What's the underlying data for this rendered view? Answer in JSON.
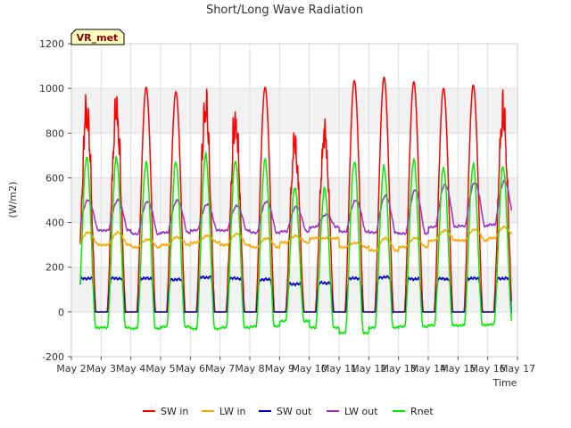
{
  "chart_data": {
    "type": "line",
    "title": "Short/Long Wave Radiation",
    "xlabel": "Time",
    "ylabel": "(W/m2)",
    "badge": "VR_met",
    "ylim": [
      -200,
      1200
    ],
    "yticks": [
      -200,
      0,
      200,
      400,
      600,
      800,
      1000,
      1200
    ],
    "xlim": [
      2,
      17
    ],
    "xticks": [
      {
        "v": 2,
        "label": "May 2"
      },
      {
        "v": 3,
        "label": "May 3"
      },
      {
        "v": 4,
        "label": "May 4"
      },
      {
        "v": 5,
        "label": "May 5"
      },
      {
        "v": 6,
        "label": "May 6"
      },
      {
        "v": 7,
        "label": "May 7"
      },
      {
        "v": 8,
        "label": "May 8"
      },
      {
        "v": 9,
        "label": "May 9"
      },
      {
        "v": 10,
        "label": "May 10"
      },
      {
        "v": 11,
        "label": "May 11"
      },
      {
        "v": 12,
        "label": "May 12"
      },
      {
        "v": 13,
        "label": "May 13"
      },
      {
        "v": 14,
        "label": "May 14"
      },
      {
        "v": 15,
        "label": "May 15"
      },
      {
        "v": 16,
        "label": "May 16"
      },
      {
        "v": 17,
        "label": "May 17"
      }
    ],
    "grid": true,
    "legend_position": "bottom",
    "time_range": [
      2.3,
      16.8
    ],
    "series": [
      {
        "name": "SW in",
        "color": "#ff0000",
        "kind": "sw_in",
        "daily_peaks": [
          1030,
          1005,
          985,
          1050,
          970,
          1005,
          855,
          905,
          1035,
          1050,
          1030,
          1000,
          1015,
          1020
        ]
      },
      {
        "name": "LW in",
        "color": "#ffa500",
        "kind": "lw_in",
        "daily_peaks": [
          355,
          325,
          335,
          340,
          350,
          330,
          340,
          330,
          310,
          330,
          330,
          365,
          370,
          380
        ],
        "daily_base": [
          300,
          290,
          300,
          310,
          300,
          290,
          310,
          330,
          290,
          275,
          290,
          320,
          320,
          330
        ]
      },
      {
        "name": "SW out",
        "color": "#0000cc",
        "kind": "sw_out",
        "daily_peaks": [
          150,
          150,
          145,
          155,
          150,
          145,
          125,
          130,
          150,
          155,
          148,
          148,
          150,
          150
        ]
      },
      {
        "name": "LW out",
        "color": "#9932cc",
        "kind": "lw_out",
        "daily_peaks": [
          500,
          495,
          500,
          480,
          475,
          495,
          470,
          435,
          500,
          520,
          545,
          570,
          580,
          585
        ],
        "daily_base": [
          365,
          350,
          355,
          365,
          365,
          355,
          360,
          380,
          360,
          355,
          350,
          380,
          385,
          390
        ]
      },
      {
        "name": "Rnet",
        "color": "#00ee00",
        "kind": "rnet",
        "daily_peaks": [
          690,
          670,
          670,
          700,
          680,
          680,
          555,
          550,
          675,
          650,
          680,
          645,
          660,
          650
        ],
        "daily_base": [
          -70,
          -75,
          -65,
          -75,
          -70,
          -65,
          -40,
          -70,
          -95,
          -70,
          -65,
          -60,
          -60,
          -55
        ]
      }
    ]
  }
}
